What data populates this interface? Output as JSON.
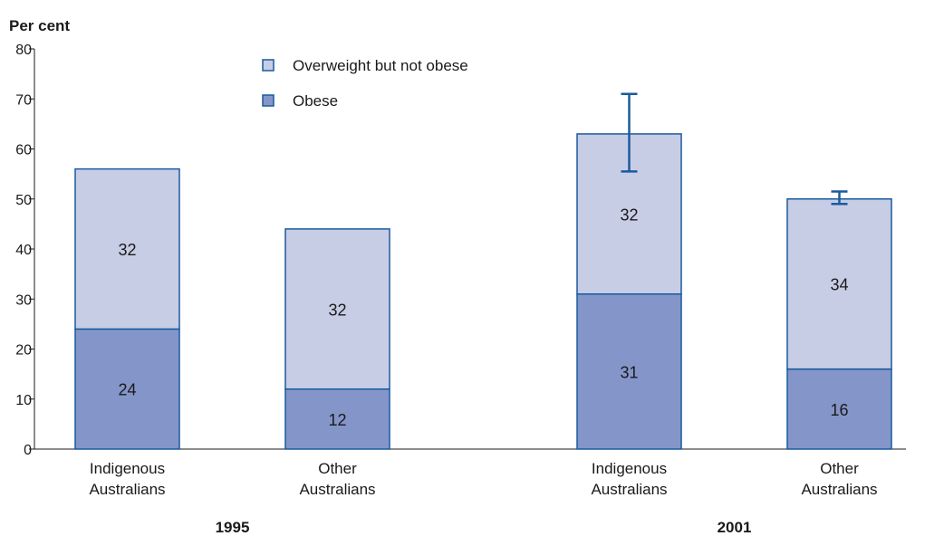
{
  "chart_data": {
    "type": "bar",
    "stacked": true,
    "ylabel": "Per cent",
    "ylim": [
      0,
      80
    ],
    "yticks": [
      0,
      10,
      20,
      30,
      40,
      50,
      60,
      70,
      80
    ],
    "groups": [
      "1995",
      "2001"
    ],
    "categories": [
      {
        "line1": "Indigenous",
        "line2": "Australians",
        "group": "1995"
      },
      {
        "line1": "Other",
        "line2": "Australians",
        "group": "1995"
      },
      {
        "line1": "Indigenous",
        "line2": "Australians",
        "group": "2001"
      },
      {
        "line1": "Other",
        "line2": "Australians",
        "group": "2001"
      }
    ],
    "series": [
      {
        "name": "Obese",
        "values": [
          24,
          12,
          31,
          16
        ],
        "labels": [
          "24",
          "12",
          "31",
          "16"
        ]
      },
      {
        "name": "Overweight but not obese",
        "values": [
          32,
          32,
          32,
          34
        ],
        "labels": [
          "32",
          "32",
          "32",
          "34"
        ]
      }
    ],
    "error_bars": [
      null,
      null,
      [
        55.5,
        71
      ],
      [
        49,
        51.5
      ]
    ],
    "legend": [
      "Overweight but not obese",
      "Obese"
    ],
    "legend_position": "top-center",
    "colors": {
      "Obese": "#8496c9",
      "Overweight but not obese": "#c8cde6",
      "outline": "#1a5a9e",
      "axis": "#1a1a1a"
    },
    "grid": false
  }
}
